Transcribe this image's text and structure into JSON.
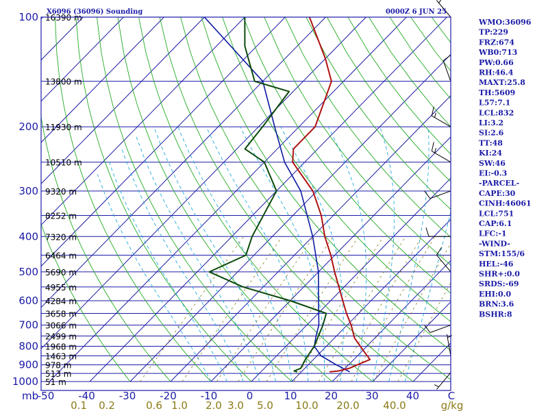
{
  "chart_data": {
    "type": "skew-t sounding",
    "title_left": "X6096 (36096) Sounding",
    "title_right": "0000Z  6 JUN 25",
    "pressure_ticks": [
      "100",
      "200",
      "300",
      "400",
      "500",
      "600",
      "700",
      "800",
      "900",
      "1000"
    ],
    "pressure_tick_values": [
      100,
      200,
      300,
      400,
      500,
      600,
      700,
      800,
      900,
      1000
    ],
    "pressure_unit": "mb",
    "height_levels": [
      {
        "p": 100,
        "label": "16390 m"
      },
      {
        "p": 150,
        "label": "13800 m"
      },
      {
        "p": 200,
        "label": "11930 m"
      },
      {
        "p": 250,
        "label": "10510 m"
      },
      {
        "p": 300,
        "label": "9320 m"
      },
      {
        "p": 350,
        "label": "8252 m"
      },
      {
        "p": 400,
        "label": "7320 m"
      },
      {
        "p": 450,
        "label": "6464 m"
      },
      {
        "p": 500,
        "label": "5690 m"
      },
      {
        "p": 550,
        "label": "4955 m"
      },
      {
        "p": 600,
        "label": "4284 m"
      },
      {
        "p": 650,
        "label": "3658 m"
      },
      {
        "p": 700,
        "label": "3066 m"
      },
      {
        "p": 750,
        "label": "2499 m"
      },
      {
        "p": 800,
        "label": "1968 m"
      },
      {
        "p": 850,
        "label": "1463 m"
      },
      {
        "p": 900,
        "label": "978 m"
      },
      {
        "p": 950,
        "label": "513 m"
      },
      {
        "p": 1000,
        "label": "51 m"
      }
    ],
    "temperature_ticks": [
      "-50",
      "-40",
      "-30",
      "-20",
      "-10",
      "0",
      "10",
      "20",
      "30",
      "40"
    ],
    "temperature_tick_values": [
      -50,
      -40,
      -30,
      -20,
      -10,
      0,
      10,
      20,
      30,
      40
    ],
    "temperature_unit": "C",
    "mixing_ratio_ticks": [
      "0.1",
      "0.2",
      "0.6",
      "1.0",
      "2.0",
      "3.0",
      "5.0",
      "10.0",
      "20.0",
      "40.0"
    ],
    "mixing_ratio_unit": "g/kg",
    "temperature_profile": [
      {
        "p": 941,
        "t": 17.0
      },
      {
        "p": 935,
        "t": 19.0
      },
      {
        "p": 920,
        "t": 21.0
      },
      {
        "p": 870,
        "t": 24.0
      },
      {
        "p": 820,
        "t": 20.0
      },
      {
        "p": 760,
        "t": 15.0
      },
      {
        "p": 700,
        "t": 11.0
      },
      {
        "p": 650,
        "t": 7.0
      },
      {
        "p": 600,
        "t": 3.0
      },
      {
        "p": 500,
        "t": -6.0
      },
      {
        "p": 450,
        "t": -11.0
      },
      {
        "p": 400,
        "t": -17.0
      },
      {
        "p": 350,
        "t": -23.0
      },
      {
        "p": 300,
        "t": -31.0
      },
      {
        "p": 250,
        "t": -43.0
      },
      {
        "p": 230,
        "t": -46.0
      },
      {
        "p": 200,
        "t": -46.0
      },
      {
        "p": 150,
        "t": -53.0
      },
      {
        "p": 130,
        "t": -60.0
      },
      {
        "p": 100,
        "t": -74.0
      }
    ],
    "dewpoint_profile": [
      {
        "p": 941,
        "t": 9.0
      },
      {
        "p": 935,
        "t": 8.0
      },
      {
        "p": 920,
        "t": 9.0
      },
      {
        "p": 870,
        "t": 8.0
      },
      {
        "p": 800,
        "t": 7.0
      },
      {
        "p": 700,
        "t": 4.0
      },
      {
        "p": 650,
        "t": 2.0
      },
      {
        "p": 600,
        "t": -10.0
      },
      {
        "p": 550,
        "t": -25.0
      },
      {
        "p": 500,
        "t": -37.0
      },
      {
        "p": 450,
        "t": -32.0
      },
      {
        "p": 400,
        "t": -35.0
      },
      {
        "p": 300,
        "t": -40.0
      },
      {
        "p": 250,
        "t": -50.0
      },
      {
        "p": 230,
        "t": -58.0
      },
      {
        "p": 200,
        "t": -59.0
      },
      {
        "p": 160,
        "t": -61.0
      },
      {
        "p": 150,
        "t": -72.0
      },
      {
        "p": 120,
        "t": -83.0
      },
      {
        "p": 100,
        "t": -90.0
      }
    ],
    "parcel_profile": [
      {
        "p": 941,
        "t": 22.0
      },
      {
        "p": 900,
        "t": 17.0
      },
      {
        "p": 850,
        "t": 11.0
      },
      {
        "p": 800,
        "t": 7.0
      },
      {
        "p": 751,
        "t": 5.0
      },
      {
        "p": 700,
        "t": 3.0
      },
      {
        "p": 600,
        "t": -3.0
      },
      {
        "p": 500,
        "t": -10.0
      },
      {
        "p": 400,
        "t": -20.0
      },
      {
        "p": 300,
        "t": -34.0
      },
      {
        "p": 250,
        "t": -45.0
      },
      {
        "p": 200,
        "t": -56.0
      },
      {
        "p": 150,
        "t": -70.0
      },
      {
        "p": 100,
        "t": -100.0
      }
    ],
    "wind_barbs": [
      {
        "p": 945,
        "dir": 220,
        "speed": 5
      },
      {
        "p": 850,
        "dir": 350,
        "speed": 5
      },
      {
        "p": 700,
        "dir": 250,
        "speed": 10
      },
      {
        "p": 500,
        "dir": 320,
        "speed": 10
      },
      {
        "p": 400,
        "dir": 270,
        "speed": 10
      },
      {
        "p": 300,
        "dir": 250,
        "speed": 10
      },
      {
        "p": 250,
        "dir": 300,
        "speed": 15
      },
      {
        "p": 200,
        "dir": 300,
        "speed": 15
      },
      {
        "p": 150,
        "dir": 340,
        "speed": 10
      },
      {
        "p": 100,
        "dir": 320,
        "speed": 5
      }
    ],
    "colors": {
      "frame": "#1a1aa6",
      "isobars": "#1a1aa6",
      "isotherms": "#1a1aa6",
      "dry_adiabats": "#22aa22",
      "moist_adiabats": "#22aadd",
      "mixing_ratio": "#8a7a16",
      "temperature": "#b01010",
      "dewpoint": "#0b4a0b",
      "parcel": "#0a1aa0",
      "barbs": "#000000"
    }
  },
  "indices": [
    "WMO:36096",
    "TP:229",
    "FRZ:674",
    "WB0:713",
    "PW:0.66",
    "RH:46.4",
    "MAXT:25.8",
    "TH:5609",
    "L57:7.1",
    "LCL:832",
    "LI:3.2",
    "SI:2.6",
    "TT:48",
    "KI:24",
    "SW:46",
    "EI:-0.3",
    "-PARCEL-",
    "CAPE:30",
    "CINH:46061",
    "LCL:751",
    "CAP:6.1",
    "LFC:-1",
    "-WIND-",
    "STM:155/6",
    "HEL:-46",
    "SHR+:0.0",
    "SRDS:-69",
    "EHI:0.0",
    "BRN:3.6",
    "BSHR:8"
  ]
}
